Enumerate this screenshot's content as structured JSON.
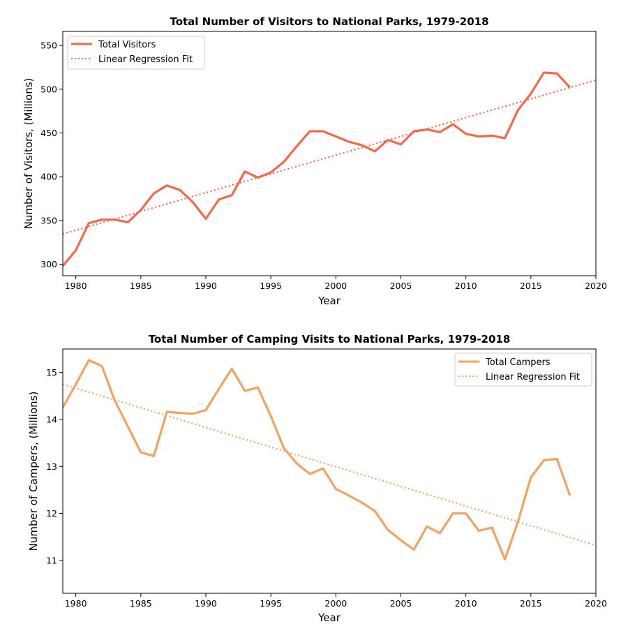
{
  "charts": [
    {
      "title": "Total Number of Visitors to National Parks, 1979-2018",
      "xlabel": "Year",
      "ylabel": "Number of Visitors, (Millions)",
      "xticks": [
        "1980",
        "1985",
        "1990",
        "1995",
        "2000",
        "2005",
        "2010",
        "2015",
        "2020"
      ],
      "yticks": [
        "300",
        "350",
        "400",
        "450",
        "500",
        "550"
      ],
      "legend": [
        "Total Visitors",
        "Linear Regression Fit"
      ]
    },
    {
      "title": "Total Number of Camping Visits to National Parks, 1979-2018",
      "xlabel": "Year",
      "ylabel": "Number of Campers, (Millions)",
      "xticks": [
        "1980",
        "1985",
        "1990",
        "1995",
        "2000",
        "2005",
        "2010",
        "2015",
        "2020"
      ],
      "yticks": [
        "11",
        "12",
        "13",
        "14",
        "15"
      ],
      "legend": [
        "Total Campers",
        "Linear Regression Fit"
      ]
    }
  ],
  "chart_data": [
    {
      "type": "line",
      "title": "Total Number of Visitors to National Parks, 1979-2018",
      "xlabel": "Year",
      "ylabel": "Number of Visitors, (Millions)",
      "xlim": [
        1979,
        2020
      ],
      "ylim": [
        287,
        566
      ],
      "grid": false,
      "legend_position": "top-left",
      "color": "#f4694b",
      "x": [
        1979,
        1980,
        1981,
        1982,
        1983,
        1984,
        1985,
        1986,
        1987,
        1988,
        1989,
        1990,
        1991,
        1992,
        1993,
        1994,
        1995,
        1996,
        1997,
        1998,
        1999,
        2000,
        2001,
        2002,
        2003,
        2004,
        2005,
        2006,
        2007,
        2008,
        2009,
        2010,
        2011,
        2012,
        2013,
        2014,
        2015,
        2016,
        2017,
        2018
      ],
      "series": [
        {
          "name": "Total Visitors",
          "style": "solid",
          "values": [
            298,
            316,
            347,
            351,
            351,
            348,
            362,
            381,
            390,
            385,
            371,
            352,
            374,
            379,
            406,
            399,
            405,
            417,
            435,
            452,
            452,
            446,
            440,
            436,
            429,
            442,
            437,
            452,
            454,
            451,
            460,
            449,
            446,
            447,
            444,
            476,
            495,
            519,
            518,
            502
          ]
        },
        {
          "name": "Linear Regression Fit",
          "style": "dotted",
          "x": [
            1979,
            2020
          ],
          "values": [
            334.7,
            510.4
          ]
        }
      ]
    },
    {
      "type": "line",
      "title": "Total Number of Camping Visits to National Parks, 1979-2018",
      "xlabel": "Year",
      "ylabel": "Number of Campers, (Millions)",
      "xlim": [
        1979,
        2020
      ],
      "ylim": [
        10.3,
        15.5
      ],
      "grid": false,
      "legend_position": "top-right",
      "color": "#f4a261",
      "x": [
        1979,
        1980,
        1981,
        1982,
        1983,
        1984,
        1985,
        1986,
        1987,
        1988,
        1989,
        1990,
        1991,
        1992,
        1993,
        1994,
        1995,
        1996,
        1997,
        1998,
        1999,
        2000,
        2001,
        2002,
        2003,
        2004,
        2005,
        2006,
        2007,
        2008,
        2009,
        2010,
        2011,
        2012,
        2013,
        2014,
        2015,
        2016,
        2017,
        2018
      ],
      "series": [
        {
          "name": "Total Campers",
          "style": "solid",
          "values": [
            14.25,
            14.75,
            15.26,
            15.14,
            14.4,
            13.85,
            13.3,
            13.22,
            14.16,
            14.14,
            14.12,
            14.2,
            14.65,
            15.08,
            14.61,
            14.68,
            14.07,
            13.39,
            13.06,
            12.84,
            12.96,
            12.52,
            12.38,
            12.23,
            12.05,
            11.65,
            11.43,
            11.23,
            11.72,
            11.58,
            12.0,
            12.0,
            11.63,
            11.7,
            11.02,
            11.82,
            12.77,
            13.13,
            13.16,
            12.38
          ]
        },
        {
          "name": "Linear Regression Fit",
          "style": "dotted",
          "x": [
            1979,
            2020
          ],
          "values": [
            14.75,
            11.32
          ]
        }
      ]
    }
  ]
}
